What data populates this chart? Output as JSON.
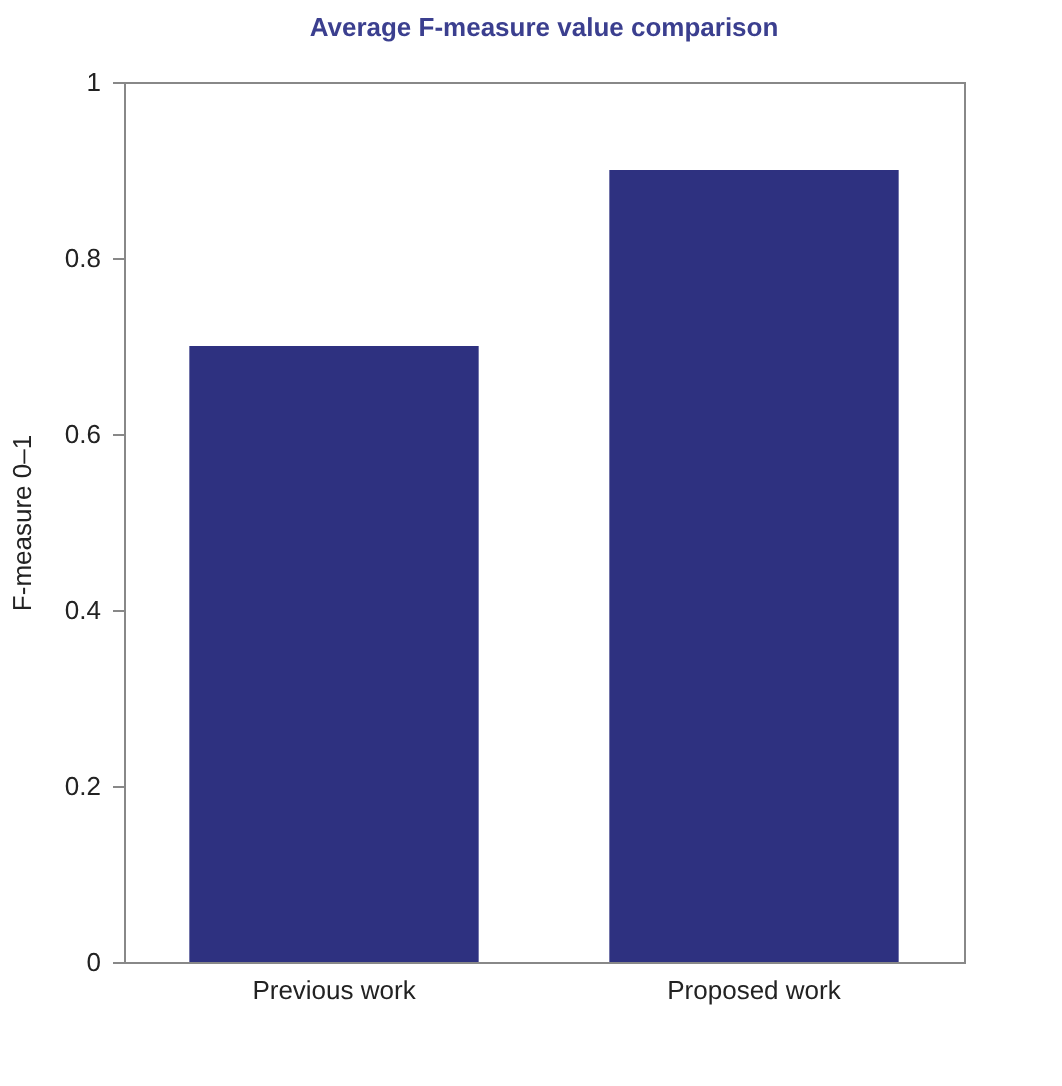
{
  "chart_data": {
    "type": "bar",
    "title": "Average F-measure value comparison",
    "ylabel": "F-measure 0–1",
    "categories": [
      "Previous work",
      "Proposed work"
    ],
    "series": [
      {
        "color": "#2e3180",
        "values": [
          0.7,
          0.9
        ]
      }
    ],
    "ylim": [
      0,
      1
    ],
    "yticks": [
      0,
      0.2,
      0.4,
      0.6,
      0.8,
      1
    ],
    "grid": false
  }
}
